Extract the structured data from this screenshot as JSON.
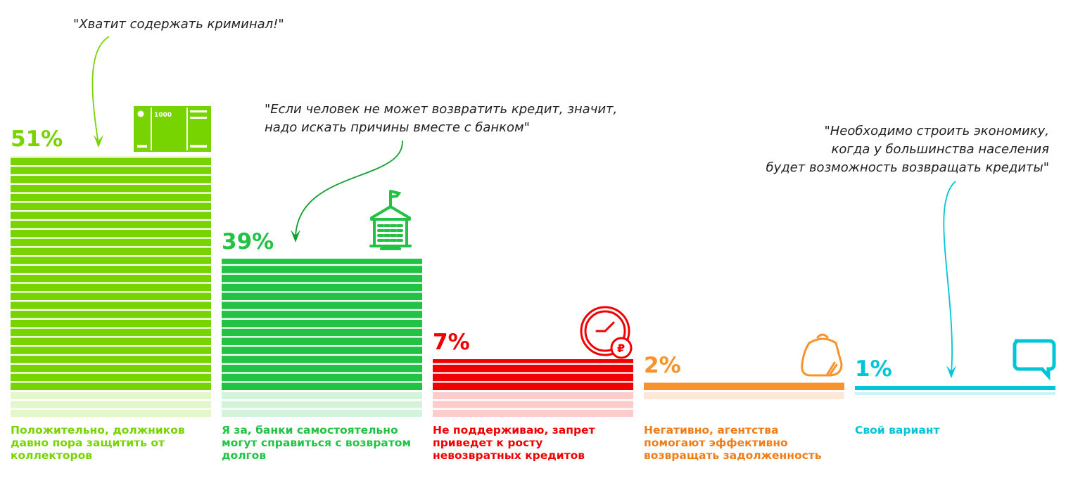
{
  "chart_data": {
    "type": "bar",
    "title": "",
    "xlabel": "",
    "ylabel": "",
    "categories": [
      "Положительно, должников давно пора защитить от коллекторов",
      "Я за, банки самостоятельно могут справиться с возвратом долгов",
      "Не поддерживаю, запрет приведет к росту невозвратных кредитов",
      "Негативно, агентства помогают эффективно возвращать задолженность",
      "Свой вариант"
    ],
    "values": [
      51,
      39,
      7,
      2,
      1
    ],
    "value_labels": [
      "51%",
      "39%",
      "7%",
      "2%",
      "1%"
    ],
    "colors": [
      "#77d400",
      "#22c244",
      "#f00000",
      "#f7922d",
      "#00c5d6"
    ],
    "label_colors": [
      "#77d400",
      "#22c244",
      "#f00000",
      "#ee7d1a",
      "#00c5d6"
    ],
    "faded_colors": [
      "#e4f6cc",
      "#d3f3da",
      "#fccccc",
      "#fde8d5",
      "#ccf3f7"
    ],
    "icons": [
      "banknote-1000-icon",
      "bank-building-icon",
      "clock-ruble-icon",
      "purse-icon",
      "speech-bubble-icon"
    ],
    "banknote_text": "1000",
    "grid": false,
    "legend": "none",
    "annotations": [
      {
        "text": "\"Хватит содержать криминал!\"",
        "points_to": 0
      },
      {
        "text": "\"Если человек не может возвратить кредит, значит,\nнадо искать причины вместе с банком\"",
        "points_to": 1
      },
      {
        "text": "\"Необходимо строить экономику,\nкогда у большинства населения\nбудет возможность возвращать кредиты\"",
        "points_to": 4
      }
    ]
  }
}
